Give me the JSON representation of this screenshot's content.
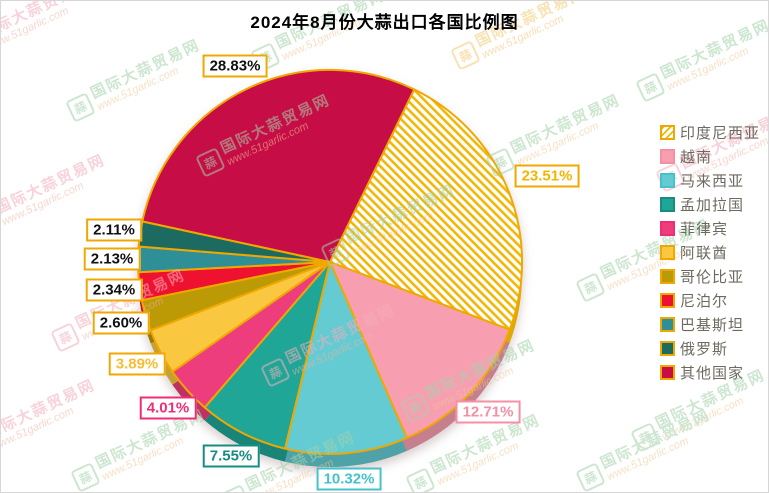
{
  "chart_data": {
    "type": "pie",
    "title": "2024年8月份大蒜出口各国比例图",
    "unit": "%",
    "start_angle_deg": 26,
    "direction": "clockwise",
    "legend_position": "right",
    "stroke_color": "#F0A800",
    "label_box_background": "#ffffff",
    "items": [
      {
        "label": "印度尼西亚",
        "value": 23.51,
        "color": "#F2B705",
        "hatch": true,
        "label_text_color": "#F5B501",
        "label_border_color": "#F0A800"
      },
      {
        "label": "越南",
        "value": 12.71,
        "color": "#F79FB0",
        "hatch": false,
        "label_text_color": "#F48FA4",
        "label_border_color": "#F48FA4"
      },
      {
        "label": "马来西亚",
        "value": 10.32,
        "color": "#63CBD1",
        "hatch": false,
        "label_text_color": "#45C2CC",
        "label_border_color": "#45C2CC"
      },
      {
        "label": "孟加拉国",
        "value": 7.55,
        "color": "#1FA697",
        "hatch": false,
        "label_text_color": "#168D80",
        "label_border_color": "#168D80"
      },
      {
        "label": "菲律宾",
        "value": 4.01,
        "color": "#EE3D7C",
        "hatch": false,
        "label_text_color": "#EE2D74",
        "label_border_color": "#EE2D74"
      },
      {
        "label": "阿联酋",
        "value": 3.89,
        "color": "#F9C840",
        "hatch": false,
        "label_text_color": "#F7BE32",
        "label_border_color": "#F0A800"
      },
      {
        "label": "哥伦比亚",
        "value": 2.6,
        "color": "#BB9A06",
        "hatch": false,
        "label_text_color": "#111111",
        "label_border_color": "#F0A800"
      },
      {
        "label": "尼泊尔",
        "value": 2.34,
        "color": "#EE1130",
        "hatch": false,
        "label_text_color": "#111111",
        "label_border_color": "#F0A800"
      },
      {
        "label": "巴基斯坦",
        "value": 2.13,
        "color": "#2F8F96",
        "hatch": false,
        "label_text_color": "#111111",
        "label_border_color": "#F0A800"
      },
      {
        "label": "俄罗斯",
        "value": 2.11,
        "color": "#1D6B60",
        "hatch": false,
        "label_text_color": "#111111",
        "label_border_color": "#F0A800"
      },
      {
        "label": "其他国家",
        "value": 28.83,
        "color": "#C60D46",
        "hatch": false,
        "label_text_color": "#111111",
        "label_border_color": "#F0A800"
      }
    ]
  },
  "legend_text_color": "#6E6A60",
  "watermark": {
    "logo_char": "蒜",
    "line1": "国际大蒜贸易网",
    "line2": "www.51garlic.com",
    "schemes": {
      "green": {
        "cn": "#A5D2AB",
        "url": "#F2C694"
      },
      "pink": {
        "cn": "#F4AFBC",
        "url": "#F4B3A6"
      },
      "yellow": {
        "cn": "#F3CB74",
        "url": "#F3C274"
      }
    }
  }
}
